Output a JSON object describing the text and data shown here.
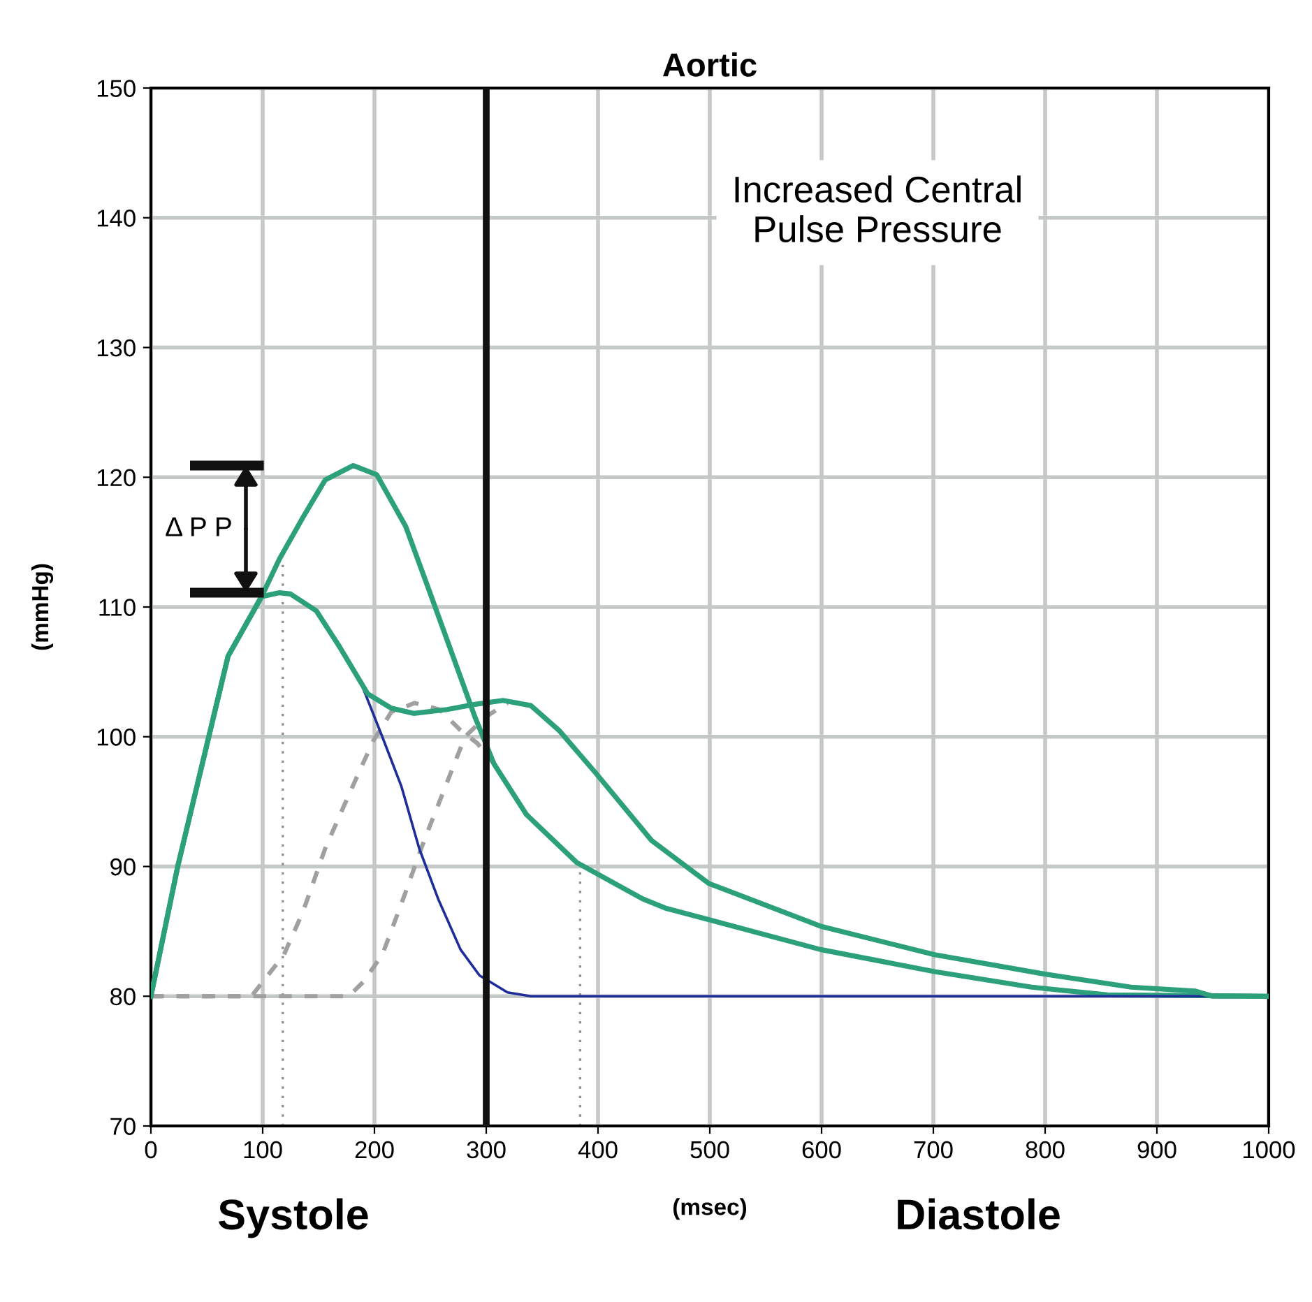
{
  "chart_data": {
    "type": "line",
    "title": "Aortic",
    "xlabel": "(msec)",
    "ylabel": "(mmHg)",
    "xlim": [
      0,
      1000
    ],
    "ylim": [
      70,
      150
    ],
    "xticks": [
      0,
      100,
      200,
      300,
      400,
      500,
      600,
      700,
      800,
      900,
      1000
    ],
    "yticks": [
      70,
      80,
      90,
      100,
      110,
      120,
      130,
      140,
      150
    ],
    "grid": true,
    "legend": false,
    "marker": "none",
    "series": [
      {
        "color": "#2ca07a",
        "line_style": "solid",
        "x": [
          0,
          24,
          69,
          99,
          115,
          136,
          156,
          181,
          202,
          228,
          248,
          269,
          290,
          307,
          336,
          381,
          440,
          460,
          599,
          701,
          788,
          856,
          1000
        ],
        "values": [
          80,
          90.0,
          106.2,
          110.8,
          113.7,
          116.9,
          119.8,
          120.9,
          120.2,
          116.2,
          111.5,
          106.5,
          101.5,
          97.9,
          94.0,
          90.3,
          87.5,
          86.8,
          83.6,
          81.9,
          80.7,
          80.1,
          80
        ]
      },
      {
        "color": "#1f2d9a",
        "line_style": "solid",
        "x": [
          190,
          207,
          224,
          240,
          257,
          277,
          294,
          319,
          340,
          1000
        ],
        "values": [
          103.7,
          100.0,
          96.2,
          91.4,
          87.5,
          83.6,
          81.6,
          80.3,
          80,
          80
        ]
      },
      {
        "color": "#a0a0a0",
        "line_style": "dashed",
        "x": [
          0,
          90,
          119,
          136,
          156,
          178,
          199,
          215,
          236,
          258,
          277,
          292,
          307
        ],
        "values": [
          80,
          80,
          83.2,
          86.5,
          91.4,
          95.7,
          99.7,
          101.9,
          102.6,
          102.1,
          100.5,
          99.5,
          97.9
        ]
      },
      {
        "color": "#a0a0a0",
        "line_style": "dashed",
        "x": [
          0,
          177,
          190,
          207,
          224,
          244,
          265,
          281,
          299,
          319
        ],
        "values": [
          80,
          80,
          81.1,
          83.2,
          87.1,
          91.9,
          96.5,
          100.0,
          101.5,
          102.6
        ]
      },
      {
        "color": "#2ca07a",
        "line_style": "solid",
        "x": [
          0,
          24,
          69,
          99,
          115,
          125,
          148,
          169,
          194,
          215,
          235,
          265,
          290,
          315,
          340,
          365,
          398,
          448,
          499,
          599,
          701,
          800,
          877,
          934,
          950,
          1000
        ],
        "values": [
          80,
          90.0,
          106.2,
          110.8,
          111.1,
          111.0,
          109.7,
          106.9,
          103.3,
          102.2,
          101.8,
          102.1,
          102.5,
          102.8,
          102.4,
          100.5,
          97.2,
          92.0,
          88.7,
          85.4,
          83.2,
          81.7,
          80.7,
          80.4,
          80,
          80
        ]
      },
      {
        "color": "#909090",
        "line_style": "dotted",
        "x": [
          118,
          118
        ],
        "values": [
          70,
          113.8
        ]
      },
      {
        "color": "#909090",
        "line_style": "dotted",
        "x": [
          384,
          384
        ],
        "values": [
          70,
          90.4
        ]
      }
    ],
    "ref_lines": [
      {
        "axis": "x",
        "value": 300,
        "color": "#111111",
        "line_style": "solid"
      }
    ],
    "annotations": [
      "Δ P P",
      "Increased Central\nPulse Pressure",
      "Systole",
      "Diastole"
    ]
  }
}
